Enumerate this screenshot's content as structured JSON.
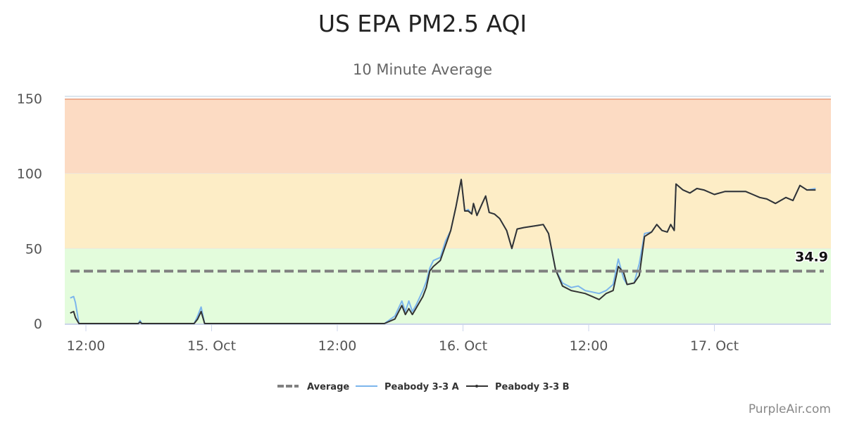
{
  "chart_data": {
    "type": "line",
    "title": "US EPA PM2.5 AQI",
    "subtitle": "10 Minute Average",
    "ylim": [
      0,
      150
    ],
    "yticks": [
      0,
      50,
      100,
      150
    ],
    "xlim": [
      "14 Oct 10:30",
      "17 Oct 10:30"
    ],
    "xticks": [
      {
        "at": "14 Oct 12:00",
        "label": "12:00"
      },
      {
        "at": "15 Oct 00:00",
        "label": "15. Oct"
      },
      {
        "at": "15 Oct 12:00",
        "label": "12:00"
      },
      {
        "at": "16 Oct 00:00",
        "label": "16. Oct"
      },
      {
        "at": "16 Oct 12:00",
        "label": "12:00"
      },
      {
        "at": "17 Oct 00:00",
        "label": "17. Oct"
      }
    ],
    "bands": [
      {
        "from": 0,
        "to": 50,
        "color": "#e3fcdc"
      },
      {
        "from": 50,
        "to": 100,
        "color": "#fdedc6"
      },
      {
        "from": 100,
        "to": 150,
        "color": "#fcdbc3"
      }
    ],
    "grid": true,
    "legend": "bottom",
    "average": {
      "name": "Average",
      "value": 34.9,
      "label": "34.9",
      "color": "#808080"
    },
    "x": [
      "14 Oct 10:30",
      "14 Oct 10:50",
      "14 Oct 11:00",
      "14 Oct 11:20",
      "14 Oct 17:00",
      "14 Oct 17:10",
      "14 Oct 17:20",
      "14 Oct 22:20",
      "14 Oct 22:40",
      "14 Oct 23:00",
      "14 Oct 23:20",
      "15 Oct 16:30",
      "15 Oct 17:30",
      "15 Oct 18:10",
      "15 Oct 18:30",
      "15 Oct 18:50",
      "15 Oct 19:10",
      "15 Oct 19:30",
      "15 Oct 20:10",
      "15 Oct 20:30",
      "15 Oct 20:50",
      "15 Oct 21:10",
      "15 Oct 21:50",
      "15 Oct 22:20",
      "15 Oct 22:50",
      "15 Oct 23:20",
      "15 Oct 23:50",
      "16 Oct 00:10",
      "16 Oct 00:30",
      "16 Oct 00:50",
      "16 Oct 01:00",
      "16 Oct 01:20",
      "16 Oct 01:50",
      "16 Oct 02:10",
      "16 Oct 02:30",
      "16 Oct 03:00",
      "16 Oct 03:30",
      "16 Oct 04:10",
      "16 Oct 04:40",
      "16 Oct 05:10",
      "16 Oct 05:50",
      "16 Oct 06:50",
      "16 Oct 07:40",
      "16 Oct 08:10",
      "16 Oct 08:50",
      "16 Oct 09:30",
      "16 Oct 10:20",
      "16 Oct 11:00",
      "16 Oct 11:40",
      "16 Oct 12:20",
      "16 Oct 13:00",
      "16 Oct 13:40",
      "16 Oct 14:20",
      "16 Oct 14:50",
      "16 Oct 15:20",
      "16 Oct 15:40",
      "16 Oct 16:20",
      "16 Oct 16:50",
      "16 Oct 17:20",
      "16 Oct 18:00",
      "16 Oct 18:30",
      "16 Oct 19:00",
      "16 Oct 19:30",
      "16 Oct 19:50",
      "16 Oct 20:10",
      "16 Oct 20:20",
      "16 Oct 21:00",
      "16 Oct 21:40",
      "16 Oct 22:20",
      "16 Oct 23:00",
      "17 Oct 00:00",
      "17 Oct 01:00",
      "17 Oct 01:40",
      "17 Oct 03:00",
      "17 Oct 03:40",
      "17 Oct 04:20",
      "17 Oct 05:00",
      "17 Oct 05:50",
      "17 Oct 06:50",
      "17 Oct 07:30",
      "17 Oct 08:10",
      "17 Oct 08:50",
      "17 Oct 09:40"
    ],
    "series": [
      {
        "name": "Peabody 3-3 A",
        "color": "#7cb5ec",
        "values": [
          17,
          18,
          14,
          0,
          0,
          2,
          0,
          0,
          5,
          11,
          0,
          0,
          5,
          15,
          8,
          15,
          8,
          12,
          22,
          28,
          37,
          42,
          44,
          55,
          62,
          78,
          96,
          75,
          76,
          73,
          80,
          72,
          80,
          85,
          74,
          73,
          70,
          62,
          50,
          63,
          64,
          65,
          66,
          60,
          36,
          27,
          24,
          25,
          22,
          21,
          20,
          22,
          26,
          43,
          30,
          26,
          27,
          40,
          60,
          61,
          66,
          62,
          61,
          66,
          62,
          93,
          89,
          87,
          90,
          89,
          86,
          88,
          88,
          88,
          86,
          84,
          83,
          80,
          84,
          82,
          92,
          89,
          90
        ]
      },
      {
        "name": "Peabody 3-3 B",
        "color": "#333333",
        "values": [
          7,
          8,
          4,
          0,
          0,
          1,
          0,
          0,
          3,
          8,
          0,
          0,
          3,
          12,
          6,
          10,
          6,
          10,
          18,
          24,
          35,
          38,
          42,
          52,
          62,
          78,
          96,
          75,
          75,
          73,
          80,
          72,
          80,
          85,
          74,
          73,
          70,
          62,
          50,
          63,
          64,
          65,
          66,
          60,
          36,
          25,
          22,
          21,
          20,
          18,
          16,
          20,
          22,
          38,
          34,
          26,
          27,
          32,
          58,
          61,
          66,
          62,
          61,
          66,
          62,
          93,
          89,
          87,
          90,
          89,
          86,
          88,
          88,
          88,
          86,
          84,
          83,
          80,
          84,
          82,
          92,
          89,
          89
        ]
      }
    ]
  },
  "credit": "PurpleAir.com"
}
